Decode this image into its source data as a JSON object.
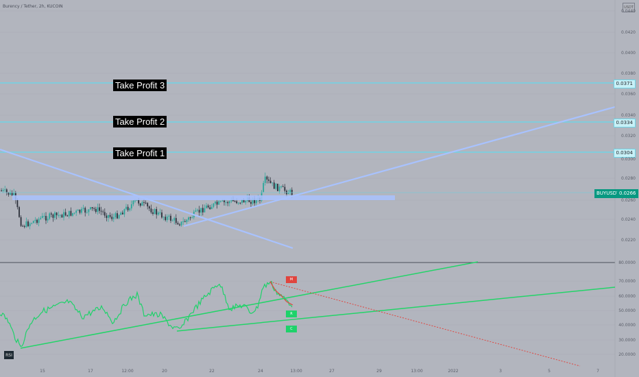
{
  "header": {
    "symbol_line": "Burency / Tether, 2h, KUCOIN"
  },
  "price_axis": {
    "labels": [
      "0.0440",
      "0.0420",
      "0.0400",
      "0.0380",
      "0.0360",
      "0.0340",
      "0.0320",
      "0.0300",
      "0.0280",
      "0.0260",
      "0.0240",
      "0.0220"
    ],
    "currency": "USDT"
  },
  "rsi_axis": {
    "labels": [
      "80.0000",
      "70.0000",
      "60.0000",
      "50.0000",
      "40.0000",
      "30.0000",
      "20.0000"
    ]
  },
  "time_axis": {
    "labels": [
      "15",
      "17",
      "12:00",
      "20",
      "22",
      "24",
      "13:00",
      "27",
      "29",
      "13:00",
      "2022",
      "3",
      "5",
      "7"
    ]
  },
  "take_profits": [
    {
      "label": "Take Profit 3",
      "price": "0.0371"
    },
    {
      "label": "Take Profit 2",
      "price": "0.0334"
    },
    {
      "label": "Take Profit 1",
      "price": "0.0304"
    }
  ],
  "current": {
    "ticker": "BUYUSDT",
    "price": "0.0266"
  },
  "rsi": {
    "button": "RSI",
    "tags": [
      {
        "text": "M"
      },
      {
        "text": "R"
      },
      {
        "text": "C"
      }
    ]
  },
  "colors": {
    "background": "#b2b5be",
    "level": "#6fd4e6",
    "trend": "#a8c2ff",
    "rsi_trend": "#22d468",
    "rsi_line_up": "#1ed26a",
    "rsi_line_down": "#e0443e"
  }
}
